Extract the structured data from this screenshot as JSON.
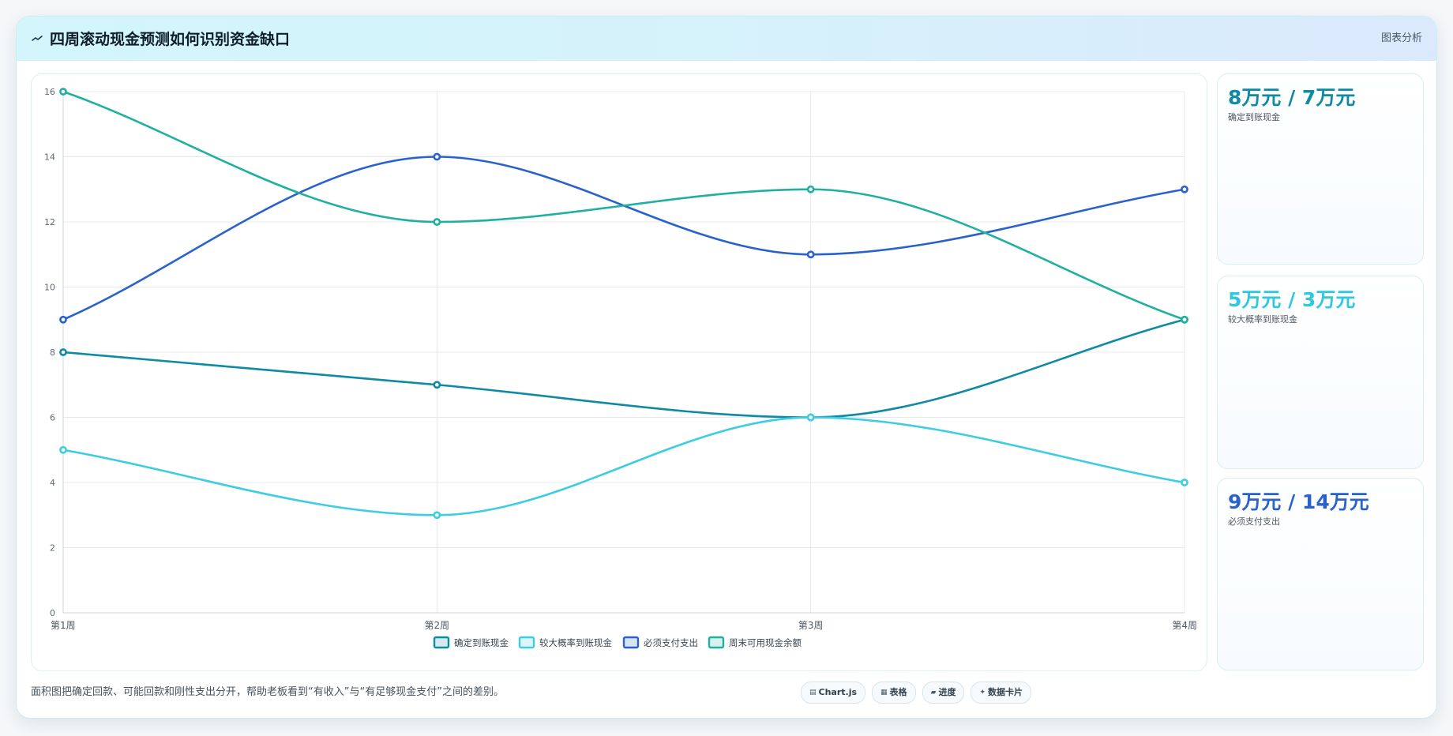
{
  "header": {
    "title": "四周滚动现金预测如何识别资金缺口",
    "right_label": "图表分析"
  },
  "cards": [
    {
      "value": "8万元 / 7万元",
      "label": "确定到账现金",
      "color": "#0e8aa4"
    },
    {
      "value": "5万元 / 3万元",
      "label": "较大概率到账现金",
      "color": "#2ec9e0"
    },
    {
      "value": "9万元 / 14万元",
      "label": "必须支付支出",
      "color": "#2a62cc"
    }
  ],
  "footer": {
    "description": "面积图把确定回款、可能回款和刚性支出分开，帮助老板看到“有收入”与“有足够现金支付”之间的差别。",
    "pills": [
      {
        "icon": "chart-icon",
        "glyph": "▤",
        "label": "Chart.js"
      },
      {
        "icon": "table-icon",
        "glyph": "▦",
        "label": "表格"
      },
      {
        "icon": "progress-icon",
        "glyph": "▰",
        "label": "进度"
      },
      {
        "icon": "card-icon",
        "glyph": "✦",
        "label": "数据卡片"
      }
    ]
  },
  "chart_data": {
    "type": "line",
    "categories": [
      "第1周",
      "第2周",
      "第3周",
      "第4周"
    ],
    "ylim": [
      0,
      16
    ],
    "yticks": [
      0,
      2,
      4,
      6,
      8,
      10,
      12,
      14,
      16
    ],
    "grid": true,
    "legend_position": "bottom",
    "series": [
      {
        "name": "确定到账现金",
        "color": "#0e8aa4",
        "values": [
          8,
          7,
          6,
          9
        ]
      },
      {
        "name": "较大概率到账现金",
        "color": "#3ccde3",
        "values": [
          5,
          3,
          6,
          4
        ]
      },
      {
        "name": "必须支付支出",
        "color": "#2a62cc",
        "values": [
          9,
          14,
          11,
          13
        ]
      },
      {
        "name": "周末可用现金余额",
        "color": "#1fb0a0",
        "values": [
          16,
          12,
          13,
          9
        ]
      }
    ]
  }
}
